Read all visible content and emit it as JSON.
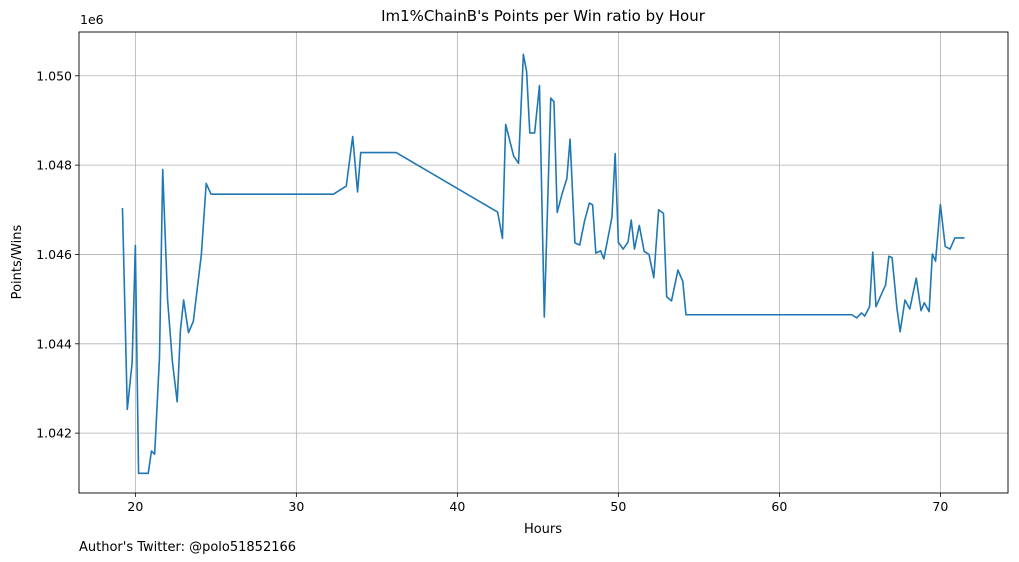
{
  "chart_data": {
    "type": "line",
    "title": "Im1%ChainB's Points per Win ratio by Hour",
    "xlabel": "Hours",
    "ylabel": "Points/Wins",
    "y_offset_label": "1e6",
    "xlim": [
      16.5,
      74.2
    ],
    "ylim": [
      1.04066,
      1.05098
    ],
    "x_ticks": [
      20,
      30,
      40,
      50,
      60,
      70
    ],
    "x_tick_labels": [
      "20",
      "30",
      "40",
      "50",
      "60",
      "70"
    ],
    "y_ticks": [
      1.042,
      1.044,
      1.046,
      1.048,
      1.05
    ],
    "y_tick_labels": [
      "1.042",
      "1.044",
      "1.046",
      "1.048",
      "1.050"
    ],
    "grid": true,
    "line_color": "#1f77b4",
    "series": [
      {
        "x": [
          19.2,
          19.5,
          19.8,
          20.0,
          20.2,
          20.4,
          20.8,
          21.0,
          21.2,
          21.5,
          21.7,
          22.0,
          22.3,
          22.6,
          22.8,
          23.0,
          23.3,
          23.6,
          23.8,
          24.1,
          24.4,
          24.7,
          32.3,
          33.1,
          33.5,
          33.8,
          34.0,
          34.4,
          36.2,
          42.5,
          42.8,
          43.0,
          43.5,
          43.8,
          44.1,
          44.3,
          44.5,
          44.8,
          45.1,
          45.4,
          45.8,
          46.0,
          46.2,
          46.5,
          46.8,
          47.0,
          47.3,
          47.6,
          47.9,
          48.2,
          48.4,
          48.6,
          48.9,
          49.1,
          49.6,
          49.8,
          50.0,
          50.3,
          50.6,
          50.8,
          51.0,
          51.3,
          51.6,
          51.9,
          52.2,
          52.5,
          52.8,
          53.0,
          53.3,
          53.7,
          54.0,
          54.2,
          64.5,
          64.8,
          65.1,
          65.3,
          65.6,
          65.8,
          66.0,
          66.3,
          66.6,
          66.8,
          67.0,
          67.3,
          67.5,
          67.8,
          68.1,
          68.5,
          68.8,
          69.0,
          69.3,
          69.5,
          69.7,
          70.0,
          70.3,
          70.6,
          70.9,
          71.5
        ],
        "y": [
          1.04704,
          1.04253,
          1.04358,
          1.0462,
          1.0411,
          1.0411,
          1.0411,
          1.0416,
          1.04153,
          1.0437,
          1.0479,
          1.045,
          1.0436,
          1.0427,
          1.0443,
          1.04498,
          1.04425,
          1.0445,
          1.0451,
          1.046,
          1.04759,
          1.04735,
          1.04735,
          1.04753,
          1.04864,
          1.0474,
          1.04828,
          1.04828,
          1.04828,
          1.04695,
          1.04636,
          1.04891,
          1.0482,
          1.04804,
          1.05048,
          1.0501,
          1.04872,
          1.04872,
          1.04978,
          1.0446,
          1.0495,
          1.04942,
          1.04694,
          1.04735,
          1.0477,
          1.04858,
          1.04626,
          1.04621,
          1.04675,
          1.04715,
          1.04711,
          1.04603,
          1.04608,
          1.0459,
          1.04683,
          1.04826,
          1.04627,
          1.04612,
          1.04628,
          1.04677,
          1.04612,
          1.04665,
          1.04607,
          1.046,
          1.04548,
          1.047,
          1.04692,
          1.04505,
          1.04496,
          1.04565,
          1.0454,
          1.04465,
          1.04465,
          1.04458,
          1.04469,
          1.04462,
          1.04483,
          1.04605,
          1.04483,
          1.04508,
          1.04532,
          1.04596,
          1.04593,
          1.0448,
          1.04427,
          1.04498,
          1.04478,
          1.04547,
          1.04474,
          1.04492,
          1.04472,
          1.04601,
          1.04585,
          1.04712,
          1.04618,
          1.04612,
          1.04637,
          1.04637
        ]
      }
    ]
  },
  "footnote": "Author's Twitter: @polo51852166"
}
